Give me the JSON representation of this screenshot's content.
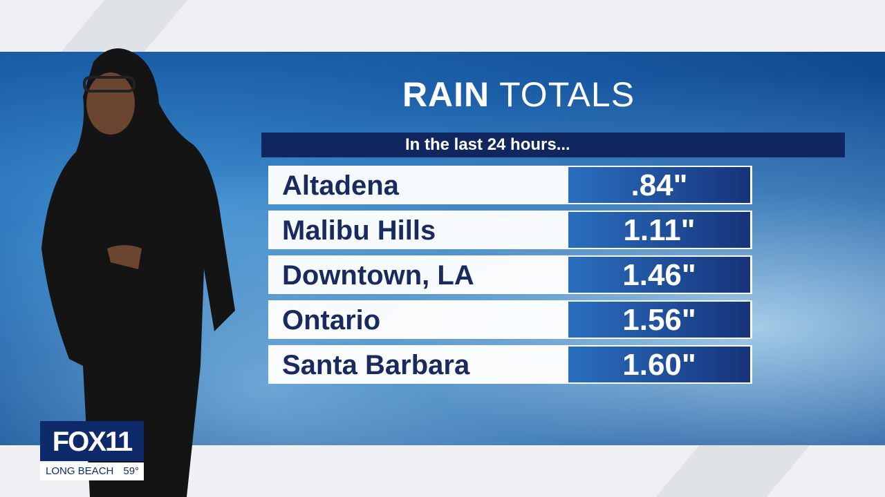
{
  "graphic": {
    "title": {
      "bold": "RAIN",
      "light": "TOTALS"
    },
    "subtitle": "In the last 24 hours...",
    "rows": [
      {
        "location": "Altadena",
        "amount": ".84\""
      },
      {
        "location": "Malibu Hills",
        "amount": "1.11\""
      },
      {
        "location": "Downtown, LA",
        "amount": "1.46\""
      },
      {
        "location": "Ontario",
        "amount": "1.56\""
      },
      {
        "location": "Santa Barbara",
        "amount": "1.60\""
      }
    ]
  },
  "logo": {
    "network": "FOX",
    "channel": "11",
    "city": "LONG BEACH",
    "temperature": "59°"
  }
}
